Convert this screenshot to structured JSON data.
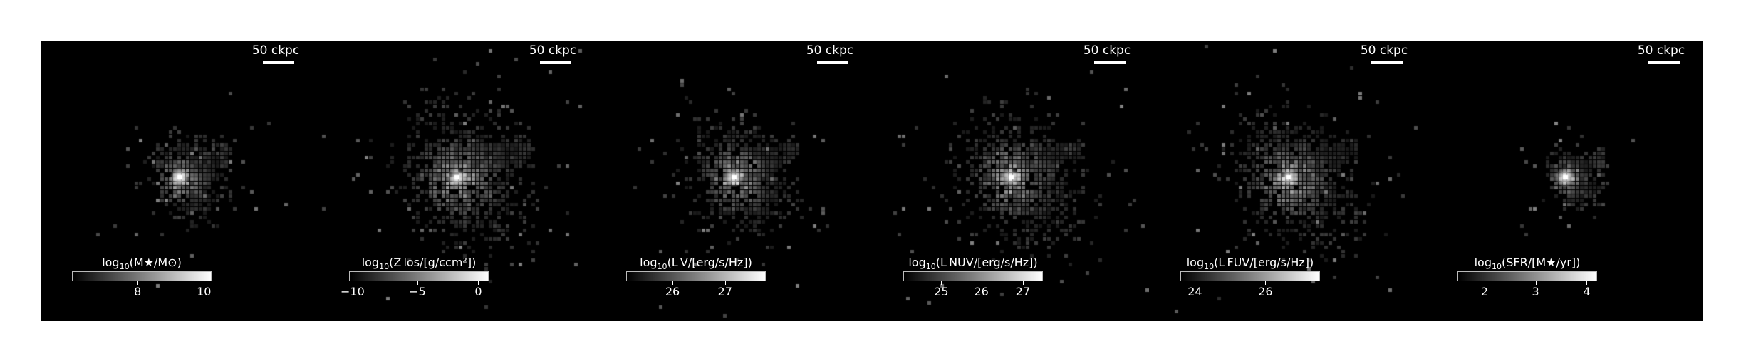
{
  "image": {
    "background": "#000000",
    "frame": "#ffffff"
  },
  "panels": [
    {
      "id": "mass",
      "scale_label": "50 ckpc",
      "cb_label_prefix": "log",
      "cb_label_sub": "10",
      "cb_label_body": "(M★/M⊙)",
      "ticks": [
        {
          "label": "8",
          "frac": 0.47
        },
        {
          "label": "10",
          "frac": 0.95
        }
      ],
      "blob": {
        "spread": 0.55,
        "density": 0.45,
        "core": 1.0
      }
    },
    {
      "id": "metals",
      "scale_label": "50 ckpc",
      "cb_label_prefix": "log",
      "cb_label_sub": "10",
      "cb_label_body": "(Z los/[g/ccm²])",
      "ticks": [
        {
          "label": "−10",
          "frac": 0.02
        },
        {
          "label": "−5",
          "frac": 0.49
        },
        {
          "label": "0",
          "frac": 0.93
        }
      ],
      "blob": {
        "spread": 1.0,
        "density": 0.75,
        "core": 1.0
      }
    },
    {
      "id": "lv",
      "scale_label": "50 ckpc",
      "cb_label_prefix": "log",
      "cb_label_sub": "10",
      "cb_label_body": "(L V/[erg/s/Hz])",
      "ticks": [
        {
          "label": "26",
          "frac": 0.33
        },
        {
          "label": "27",
          "frac": 0.71
        }
      ],
      "blob": {
        "spread": 0.8,
        "density": 0.6,
        "core": 0.9
      }
    },
    {
      "id": "lnuv",
      "scale_label": "50 ckpc",
      "cb_label_prefix": "log",
      "cb_label_sub": "10",
      "cb_label_body": "(L NUV/[erg/s/Hz])",
      "ticks": [
        {
          "label": "25",
          "frac": 0.27
        },
        {
          "label": "26",
          "frac": 0.56
        },
        {
          "label": "27",
          "frac": 0.86
        }
      ],
      "blob": {
        "spread": 0.95,
        "density": 0.7,
        "core": 0.85
      }
    },
    {
      "id": "lfuv",
      "scale_label": "50 ckpc",
      "cb_label_prefix": "log",
      "cb_label_sub": "10",
      "cb_label_body": "(L FUV/[erg/s/Hz])",
      "ticks": [
        {
          "label": "24",
          "frac": 0.1
        },
        {
          "label": "26",
          "frac": 0.61
        }
      ],
      "blob": {
        "spread": 0.95,
        "density": 0.72,
        "core": 0.85
      }
    },
    {
      "id": "sfr",
      "scale_label": "50 ckpc",
      "cb_label_prefix": "log",
      "cb_label_sub": "10",
      "cb_label_body": "(SFR/[M★/yr])",
      "ticks": [
        {
          "label": "2",
          "frac": 0.19
        },
        {
          "label": "3",
          "frac": 0.56
        },
        {
          "label": "4",
          "frac": 0.93
        }
      ],
      "blob": {
        "spread": 0.35,
        "density": 0.5,
        "core": 1.0
      }
    }
  ]
}
